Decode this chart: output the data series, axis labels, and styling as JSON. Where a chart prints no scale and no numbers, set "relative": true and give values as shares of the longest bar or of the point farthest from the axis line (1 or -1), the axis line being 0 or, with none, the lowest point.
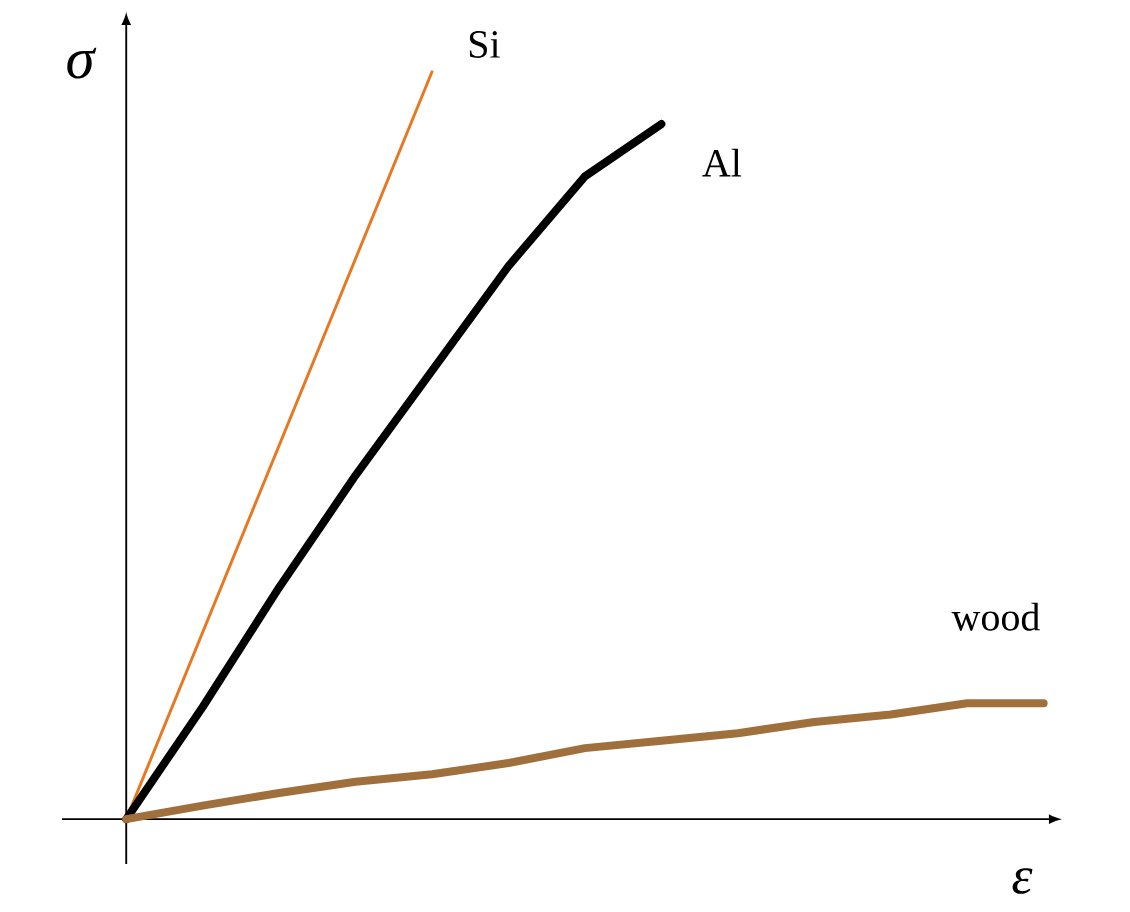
{
  "chart_data": {
    "type": "line",
    "xlabel": "ε",
    "ylabel": "σ",
    "relative": true,
    "marker": "none",
    "line_style": "solid",
    "categories": [
      null,
      null,
      null,
      null,
      null,
      null,
      null,
      null,
      null,
      null,
      null,
      null,
      null
    ],
    "series": [
      {
        "name": "Si",
        "color": "#e87722",
        "values": [
          0,
          0.25,
          0.5,
          0.75,
          1.0,
          null,
          null,
          null,
          null,
          null,
          null,
          null,
          null
        ]
      },
      {
        "name": "Al",
        "color": "#000000",
        "values": [
          0,
          0.15,
          0.31,
          0.46,
          0.6,
          0.74,
          0.86,
          0.93,
          null,
          null,
          null,
          null,
          null
        ]
      },
      {
        "name": "wood",
        "color": "#a0703c",
        "values": [
          0,
          0.018,
          0.035,
          0.05,
          0.06,
          0.075,
          0.095,
          0.105,
          0.115,
          0.13,
          0.14,
          0.155,
          0.155
        ]
      }
    ]
  }
}
